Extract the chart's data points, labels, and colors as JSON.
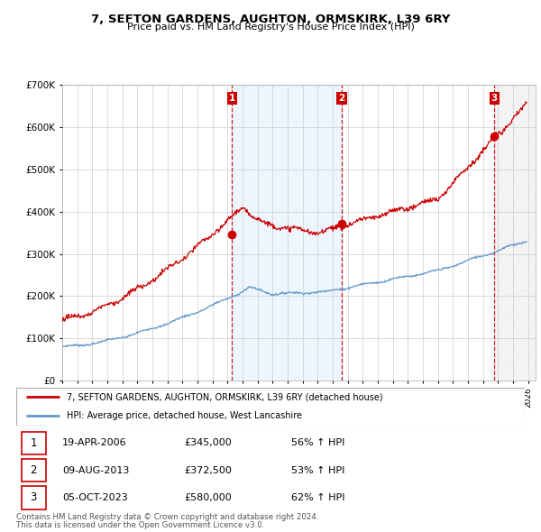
{
  "title": "7, SEFTON GARDENS, AUGHTON, ORMSKIRK, L39 6RY",
  "subtitle": "Price paid vs. HM Land Registry's House Price Index (HPI)",
  "legend_red": "7, SEFTON GARDENS, AUGHTON, ORMSKIRK, L39 6RY (detached house)",
  "legend_blue": "HPI: Average price, detached house, West Lancashire",
  "footnote1": "Contains HM Land Registry data © Crown copyright and database right 2024.",
  "footnote2": "This data is licensed under the Open Government Licence v3.0.",
  "sales": [
    {
      "num": 1,
      "date": "19-APR-2006",
      "price": "£345,000",
      "change": "56% ↑ HPI"
    },
    {
      "num": 2,
      "date": "09-AUG-2013",
      "price": "£372,500",
      "change": "53% ↑ HPI"
    },
    {
      "num": 3,
      "date": "05-OCT-2023",
      "price": "£580,000",
      "change": "62% ↑ HPI"
    }
  ],
  "sale_dates_decimal": [
    2006.3,
    2013.6,
    2023.76
  ],
  "sale_prices": [
    345000,
    372500,
    580000
  ],
  "ylim": [
    0,
    700000
  ],
  "xlim_start": 1995.0,
  "xlim_end": 2026.5,
  "vline_color": "#cc0000",
  "red_color": "#cc0000",
  "blue_color": "#6699cc",
  "blue_fill_color": "#ddeeff",
  "hatch_color": "#cccccc",
  "background_color": "#ffffff",
  "grid_color": "#cccccc"
}
